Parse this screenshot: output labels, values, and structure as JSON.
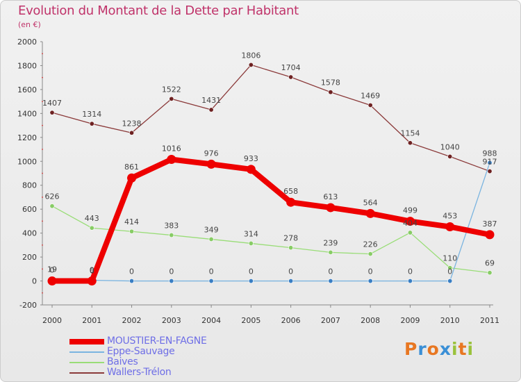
{
  "header": {
    "title": "Evolution du Montant de la Dette par Habitant",
    "unit": "(en €)"
  },
  "logo": {
    "text": "Proxiti",
    "colors": [
      "#e87722",
      "#3a8fd6",
      "#e87722",
      "#3a8fd6",
      "#9ac23c",
      "#e87722",
      "#9ac23c"
    ]
  },
  "chart_data": {
    "type": "line",
    "title": "Evolution du Montant de la Dette par Habitant",
    "ylabel": "(en €)",
    "xlabel": "",
    "categories": [
      "2000",
      "2001",
      "2002",
      "2003",
      "2004",
      "2005",
      "2006",
      "2007",
      "2008",
      "2009",
      "2010",
      "2011"
    ],
    "ylim": [
      -200,
      2000
    ],
    "yticks": [
      -200,
      0,
      200,
      400,
      600,
      800,
      1000,
      1200,
      1400,
      1600,
      1800,
      2000
    ],
    "grid": false,
    "legend_position": "bottom-left",
    "series": [
      {
        "name": "MOUSTIER-EN-FAGNE",
        "color": "#ee0000",
        "values": [
          0,
          0,
          861,
          1016,
          976,
          933,
          658,
          613,
          564,
          499,
          453,
          387
        ],
        "labels": [
          "0",
          "0",
          "861",
          "1016",
          "976",
          "933",
          "658",
          "613",
          "564",
          "499",
          "453",
          "387"
        ]
      },
      {
        "name": "Eppe-Sauvage",
        "color": "#7ab4e0",
        "values": [
          19,
          6,
          0,
          0,
          0,
          0,
          0,
          0,
          0,
          0,
          0,
          988
        ],
        "labels": [
          "19",
          "6",
          "0",
          "0",
          "0",
          "0",
          "0",
          "0",
          "0",
          "0",
          "0",
          "988"
        ]
      },
      {
        "name": "Baives",
        "color": "#99dd77",
        "values": [
          626,
          443,
          414,
          383,
          349,
          314,
          278,
          239,
          226,
          404,
          110,
          69
        ],
        "labels": [
          "626",
          "443",
          "414",
          "383",
          "349",
          "314",
          "278",
          "239",
          "226",
          "404",
          "110",
          "69"
        ]
      },
      {
        "name": "Wallers-Trélon",
        "color": "#8b3a3a",
        "values": [
          1407,
          1314,
          1238,
          1522,
          1431,
          1806,
          1704,
          1578,
          1469,
          1154,
          1040,
          917
        ],
        "labels": [
          "1407",
          "1314",
          "1238",
          "1522",
          "1431",
          "1806",
          "1704",
          "1578",
          "1469",
          "1154",
          "1040",
          "917"
        ]
      }
    ]
  }
}
